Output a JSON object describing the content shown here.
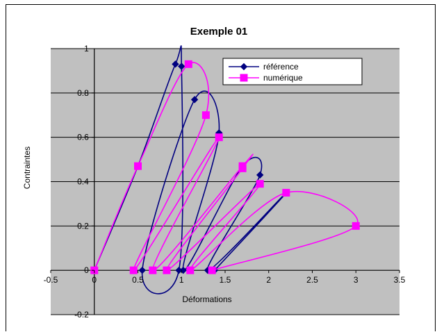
{
  "chart_data": {
    "type": "scatter",
    "title": "Exemple 01",
    "xlabel": "Déformations",
    "ylabel": "Contraintes",
    "xlim": [
      -0.5,
      3.5
    ],
    "ylim": [
      -0.2,
      1
    ],
    "xticks": [
      -0.5,
      0,
      0.5,
      1,
      1.5,
      2,
      2.5,
      3,
      3.5
    ],
    "yticks": [
      -0.2,
      0,
      0.2,
      0.4,
      0.6,
      0.8,
      1
    ],
    "xtick_labels": [
      "-0.5",
      "0",
      "0.5",
      "1",
      "1.5",
      "2",
      "2.5",
      "3",
      "3.5"
    ],
    "ytick_labels": [
      "-0.2",
      "0",
      "0.2",
      "0.4",
      "0.6",
      "0.8",
      "1"
    ],
    "grid": "horizontal",
    "plot_background": "#c0c0c0",
    "legend_position": "top-right",
    "series": [
      {
        "name": "référence",
        "color": "#000080",
        "marker": "diamond",
        "points": [
          [
            0,
            0
          ],
          [
            0.5,
            0.47
          ],
          [
            0.93,
            0.93
          ],
          [
            1.0,
            0.92
          ],
          [
            0.97,
            0.0
          ],
          [
            0.55,
            0.0
          ],
          [
            1.15,
            0.77
          ],
          [
            1.43,
            0.62
          ],
          [
            1.02,
            0.0
          ],
          [
            1.7,
            0.47
          ],
          [
            1.9,
            0.43
          ],
          [
            1.3,
            0.0
          ],
          [
            2.2,
            0.35
          ],
          [
            1.38,
            0.0
          ]
        ]
      },
      {
        "name": "numérique",
        "color": "#ff00ff",
        "marker": "square",
        "points": [
          [
            0,
            0
          ],
          [
            0.5,
            0.47
          ],
          [
            1.08,
            0.93
          ],
          [
            1.28,
            0.7
          ],
          [
            0.45,
            0.0
          ],
          [
            1.43,
            0.6
          ],
          [
            0.67,
            0.0
          ],
          [
            1.7,
            0.47
          ],
          [
            1.7,
            0.46
          ],
          [
            0.83,
            0.0
          ],
          [
            1.9,
            0.39
          ],
          [
            1.1,
            0.0
          ],
          [
            2.2,
            0.35
          ],
          [
            3.0,
            0.2
          ],
          [
            1.35,
            0.0
          ]
        ]
      }
    ]
  }
}
